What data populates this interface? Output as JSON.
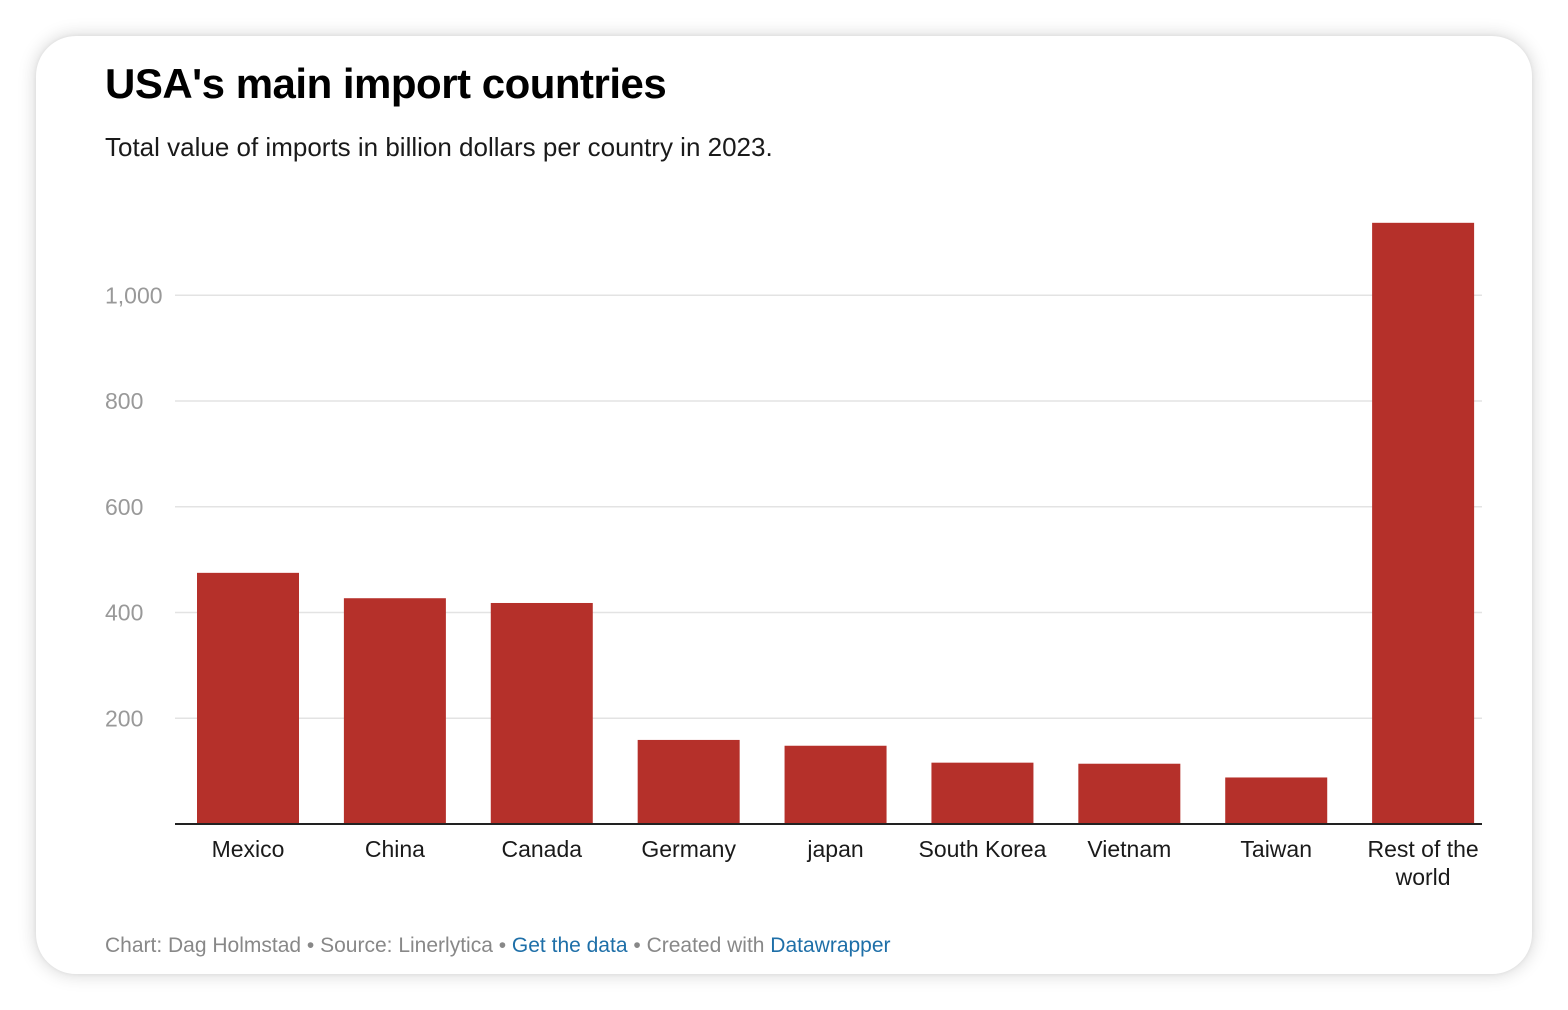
{
  "title": "USA's main import countries",
  "subtitle": "Total value of imports in billion dollars per country in 2023.",
  "footer": {
    "chart_credit": "Chart: Dag Holmstad",
    "separator": "•",
    "source": "Source: Linerlytica",
    "get_data": "Get the data",
    "created_with": "Created with",
    "tool": "Datawrapper"
  },
  "colors": {
    "bar": "#b5302a",
    "grid": "#e3e3e3",
    "axis": "#222222",
    "link": "#1e6fa8"
  },
  "chart_data": {
    "type": "bar",
    "title": "USA's main import countries",
    "subtitle": "Total value of imports in billion dollars per country in 2023.",
    "categories": [
      "Mexico",
      "China",
      "Canada",
      "Germany",
      "japan",
      "South Korea",
      "Vietnam",
      "Taiwan",
      "Rest of the world"
    ],
    "values": [
      475,
      427,
      418,
      159,
      148,
      116,
      114,
      88,
      1137
    ],
    "yticks": [
      200,
      400,
      600,
      800,
      1000
    ],
    "ytick_labels": [
      "200",
      "400",
      "600",
      "800",
      "1,000"
    ],
    "ylim": [
      0,
      1137
    ],
    "grid": true,
    "legend": "none"
  }
}
